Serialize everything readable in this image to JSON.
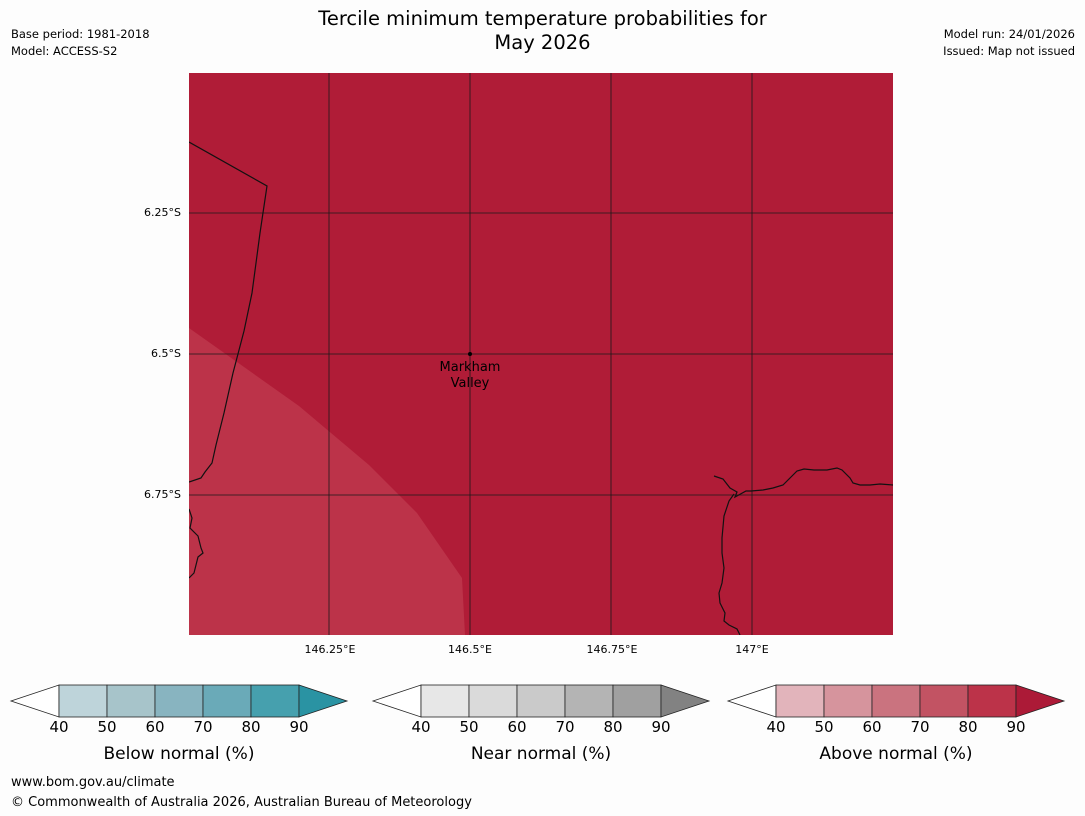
{
  "header": {
    "title_line1": "Tercile minimum temperature probabilities for",
    "title_line2": "May 2026",
    "base_period": "Base period: 1981-2018",
    "model": "Model: ACCESS-S2",
    "model_run": "Model run: 24/01/2026",
    "issued": "Issued: Map not issued"
  },
  "map": {
    "lat_labels": [
      "6.25°S",
      "6.5°S",
      "6.75°S"
    ],
    "lon_labels": [
      "146.25°E",
      "146.5°E",
      "146.75°E",
      "147°E"
    ],
    "place": {
      "name_line1": "Markham",
      "name_line2": "Valley"
    },
    "colors": {
      "dominant": "#b01c37",
      "lighter": "#bc3349"
    }
  },
  "legends": [
    {
      "title": "Below normal (%)",
      "ticks": [
        "40",
        "50",
        "60",
        "70",
        "80",
        "90"
      ],
      "colors": [
        "#ffffff",
        "#bed4da",
        "#a7c4ca",
        "#88b4c0",
        "#6aaab8",
        "#46a0ae",
        "#2a93a3"
      ]
    },
    {
      "title": "Near normal (%)",
      "ticks": [
        "40",
        "50",
        "60",
        "70",
        "80",
        "90"
      ],
      "colors": [
        "#ffffff",
        "#e7e7e7",
        "#dadada",
        "#cacaca",
        "#b4b4b4",
        "#a0a0a0",
        "#828282"
      ]
    },
    {
      "title": "Above normal (%)",
      "ticks": [
        "40",
        "50",
        "60",
        "70",
        "80",
        "90"
      ],
      "colors": [
        "#ffffff",
        "#e2b4bb",
        "#d6949d",
        "#ca737f",
        "#c25363",
        "#bc3349",
        "#ac1a37"
      ]
    }
  ],
  "footer": {
    "url": "www.bom.gov.au/climate",
    "copyright": "© Commonwealth of Australia 2026, Australian Bureau of Meteorology"
  }
}
